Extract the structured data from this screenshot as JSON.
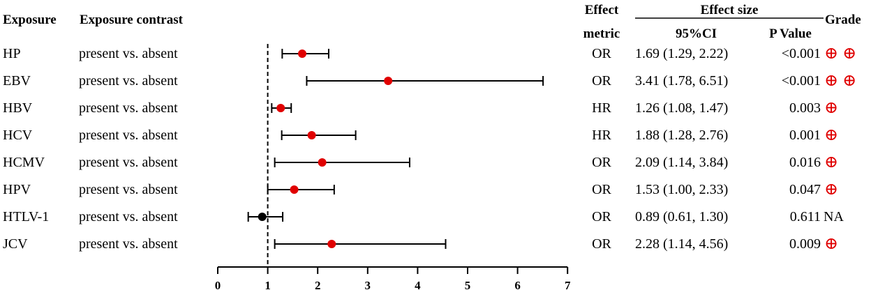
{
  "headers": {
    "exposure": "Exposure",
    "contrast": "Exposure contrast",
    "metric_line1": "Effect",
    "metric_line2": "metric",
    "effect_size": "Effect size",
    "ci": "95%CI",
    "pvalue": "P Value",
    "grade": "Grade"
  },
  "rows": [
    {
      "exposure": "HP",
      "contrast": "present vs. absent",
      "metric": "OR",
      "ci_text": "1.69 (1.29, 2.22)",
      "p": "<0.001",
      "grade": "⊕ ⊕",
      "grade_color": "#e00000"
    },
    {
      "exposure": "EBV",
      "contrast": "present vs. absent",
      "metric": "OR",
      "ci_text": "3.41 (1.78, 6.51)",
      "p": "<0.001",
      "grade": "⊕ ⊕",
      "grade_color": "#e00000"
    },
    {
      "exposure": "HBV",
      "contrast": "present vs. absent",
      "metric": "HR",
      "ci_text": "1.26 (1.08, 1.47)",
      "p": "0.003",
      "grade": "⊕",
      "grade_color": "#e00000"
    },
    {
      "exposure": "HCV",
      "contrast": "present vs. absent",
      "metric": "HR",
      "ci_text": "1.88 (1.28, 2.76)",
      "p": "0.001",
      "grade": "⊕",
      "grade_color": "#e00000"
    },
    {
      "exposure": "HCMV",
      "contrast": "present vs. absent",
      "metric": "OR",
      "ci_text": "2.09 (1.14, 3.84)",
      "p": "0.016",
      "grade": "⊕",
      "grade_color": "#e00000"
    },
    {
      "exposure": "HPV",
      "contrast": "present vs. absent",
      "metric": "OR",
      "ci_text": "1.53 (1.00, 2.33)",
      "p": "0.047",
      "grade": "⊕",
      "grade_color": "#e00000"
    },
    {
      "exposure": "HTLV-1",
      "contrast": "present vs. absent",
      "metric": "OR",
      "ci_text": "0.89 (0.61, 1.30)",
      "p": "0.611",
      "grade": "NA",
      "grade_color": "#000000"
    },
    {
      "exposure": "JCV",
      "contrast": "present vs. absent",
      "metric": "OR",
      "ci_text": "2.28 (1.14, 4.56)",
      "p": "0.009",
      "grade": "⊕",
      "grade_color": "#e00000"
    }
  ],
  "chart_data": {
    "type": "scatter",
    "subtype": "forest-plot",
    "title": "",
    "xlabel": "",
    "ylabel": "",
    "xlim": [
      0,
      7
    ],
    "xticks": [
      0,
      1,
      2,
      3,
      4,
      5,
      6,
      7
    ],
    "reference_line": 1,
    "grid": false,
    "categories": [
      "HP",
      "EBV",
      "HBV",
      "HCV",
      "HCMV",
      "HPV",
      "HTLV-1",
      "JCV"
    ],
    "estimate": [
      1.69,
      3.41,
      1.26,
      1.88,
      2.09,
      1.53,
      0.89,
      2.28
    ],
    "lower": [
      1.29,
      1.78,
      1.08,
      1.28,
      1.14,
      1.0,
      0.61,
      1.14
    ],
    "upper": [
      2.22,
      6.51,
      1.47,
      2.76,
      3.84,
      2.33,
      1.3,
      4.56
    ],
    "point_colors": [
      "#e00000",
      "#e00000",
      "#e00000",
      "#e00000",
      "#e00000",
      "#e00000",
      "#000000",
      "#e00000"
    ]
  }
}
